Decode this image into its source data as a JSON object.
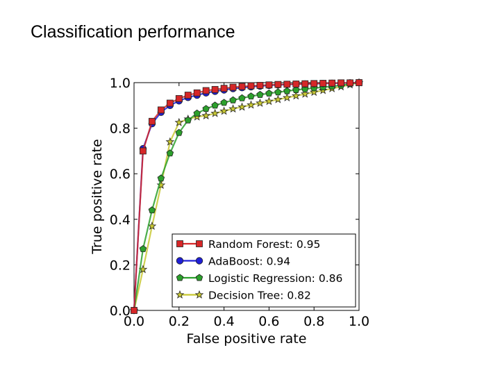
{
  "slide": {
    "title": "Classification performance"
  },
  "chart_data": {
    "type": "line",
    "title": "",
    "xlabel": "False positive rate",
    "ylabel": "True positive rate",
    "xlim": [
      0.0,
      1.0
    ],
    "ylim": [
      0.0,
      1.0
    ],
    "xticks": [
      "0.0",
      "0.2",
      "0.4",
      "0.6",
      "0.8",
      "1.0"
    ],
    "yticks": [
      "0.0",
      "0.2",
      "0.4",
      "0.6",
      "0.8",
      "1.0"
    ],
    "grid": false,
    "legend_position": "lower-right",
    "series": [
      {
        "name": "Random Forest: 0.95",
        "color": "#d62728",
        "marker": "square",
        "x": [
          0.0,
          0.04,
          0.08,
          0.12,
          0.16,
          0.2,
          0.24,
          0.28,
          0.32,
          0.36,
          0.4,
          0.44,
          0.48,
          0.52,
          0.56,
          0.6,
          0.64,
          0.68,
          0.72,
          0.76,
          0.8,
          0.84,
          0.88,
          0.92,
          0.96,
          1.0
        ],
        "y": [
          0.0,
          0.7,
          0.83,
          0.88,
          0.91,
          0.93,
          0.945,
          0.955,
          0.965,
          0.97,
          0.975,
          0.98,
          0.983,
          0.986,
          0.988,
          0.99,
          0.992,
          0.993,
          0.994,
          0.995,
          0.996,
          0.997,
          0.998,
          0.999,
          0.999,
          1.0
        ]
      },
      {
        "name": "AdaBoost: 0.94",
        "color": "#1f1fd6",
        "marker": "circle",
        "x": [
          0.0,
          0.04,
          0.08,
          0.12,
          0.16,
          0.2,
          0.24,
          0.28,
          0.32,
          0.36,
          0.4,
          0.44,
          0.48,
          0.52,
          0.56,
          0.6,
          0.64,
          0.68,
          0.72,
          0.76,
          0.8,
          0.84,
          0.88,
          0.92,
          0.96,
          1.0
        ],
        "y": [
          0.0,
          0.71,
          0.82,
          0.87,
          0.9,
          0.92,
          0.935,
          0.945,
          0.955,
          0.962,
          0.968,
          0.974,
          0.978,
          0.982,
          0.985,
          0.988,
          0.99,
          0.992,
          0.993,
          0.994,
          0.995,
          0.996,
          0.997,
          0.998,
          0.999,
          1.0
        ]
      },
      {
        "name": "Logistic Regression: 0.86",
        "color": "#2ca02c",
        "marker": "pentagon",
        "x": [
          0.0,
          0.04,
          0.08,
          0.12,
          0.16,
          0.2,
          0.24,
          0.28,
          0.32,
          0.36,
          0.4,
          0.44,
          0.48,
          0.52,
          0.56,
          0.6,
          0.64,
          0.68,
          0.72,
          0.76,
          0.8,
          0.84,
          0.88,
          0.92,
          0.96,
          1.0
        ],
        "y": [
          0.0,
          0.27,
          0.44,
          0.58,
          0.69,
          0.78,
          0.835,
          0.865,
          0.885,
          0.9,
          0.912,
          0.923,
          0.932,
          0.94,
          0.947,
          0.953,
          0.958,
          0.963,
          0.968,
          0.972,
          0.976,
          0.98,
          0.984,
          0.988,
          0.994,
          1.0
        ]
      },
      {
        "name": "Decision Tree: 0.82",
        "color": "#c8c832",
        "marker": "star",
        "x": [
          0.0,
          0.04,
          0.08,
          0.12,
          0.16,
          0.2,
          0.24,
          0.28,
          0.32,
          0.36,
          0.4,
          0.44,
          0.48,
          0.52,
          0.56,
          0.6,
          0.64,
          0.68,
          0.72,
          0.76,
          0.8,
          0.84,
          0.88,
          0.92,
          0.96,
          1.0
        ],
        "y": [
          0.0,
          0.18,
          0.37,
          0.55,
          0.74,
          0.825,
          0.84,
          0.85,
          0.855,
          0.865,
          0.875,
          0.885,
          0.893,
          0.902,
          0.91,
          0.918,
          0.926,
          0.934,
          0.942,
          0.95,
          0.958,
          0.966,
          0.974,
          0.982,
          0.991,
          1.0
        ]
      }
    ]
  }
}
